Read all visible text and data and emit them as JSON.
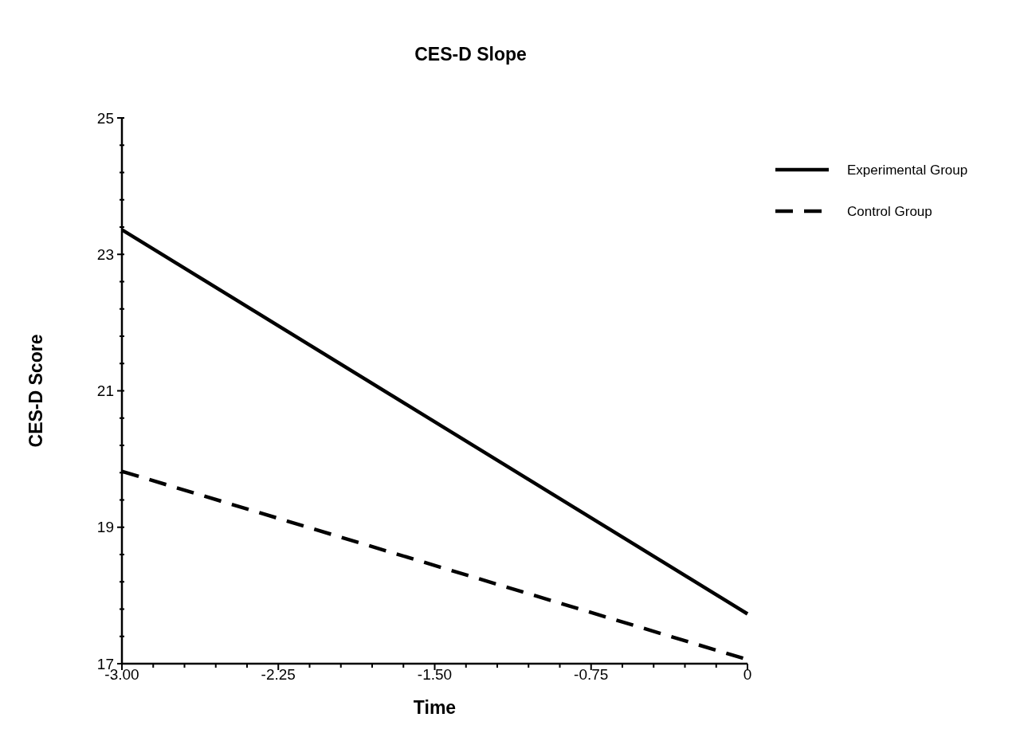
{
  "chart_data": {
    "type": "line",
    "title": "CES-D Slope",
    "xlabel": "Time",
    "ylabel": "CES-D Score",
    "x": [
      -3,
      0
    ],
    "series": [
      {
        "name": "Experimental Group",
        "color": "#000000",
        "values": [
          23.36,
          17.73
        ],
        "line_style": "solid"
      },
      {
        "name": "Control Group",
        "color": "#000000",
        "values": [
          19.82,
          17.06
        ],
        "line_style": "dashed"
      }
    ],
    "xlim": [
      -3,
      0
    ],
    "xticks": [
      {
        "value": -3,
        "label": "-3.00"
      },
      {
        "value": -2.85,
        "label": null
      },
      {
        "value": -2.7,
        "label": null
      },
      {
        "value": -2.55,
        "label": null
      },
      {
        "value": -2.4,
        "label": null
      },
      {
        "value": -2.25,
        "label": "-2.25"
      },
      {
        "value": -2.1,
        "label": null
      },
      {
        "value": -1.95,
        "label": null
      },
      {
        "value": -1.8,
        "label": null
      },
      {
        "value": -1.65,
        "label": null
      },
      {
        "value": -1.5,
        "label": "-1.50"
      },
      {
        "value": -1.35,
        "label": null
      },
      {
        "value": -1.2,
        "label": null
      },
      {
        "value": -1.05,
        "label": null
      },
      {
        "value": -0.9,
        "label": null
      },
      {
        "value": -0.75,
        "label": "-0.75"
      },
      {
        "value": -0.6,
        "label": null
      },
      {
        "value": -0.45,
        "label": null
      },
      {
        "value": -0.3,
        "label": null
      },
      {
        "value": -0.15,
        "label": null
      },
      0
    ],
    "ylim": [
      17,
      25
    ],
    "yticks": [
      17,
      {
        "value": 17.4,
        "label": null
      },
      {
        "value": 17.8,
        "label": null
      },
      {
        "value": 18.2,
        "label": null
      },
      {
        "value": 18.6,
        "label": null
      },
      19,
      {
        "value": 19.4,
        "label": null
      },
      {
        "value": 19.8,
        "label": null
      },
      {
        "value": 20.2,
        "label": null
      },
      {
        "value": 20.6,
        "label": null
      },
      21,
      {
        "value": 21.4,
        "label": null
      },
      {
        "value": 21.8,
        "label": null
      },
      {
        "value": 22.2,
        "label": null
      },
      {
        "value": 22.6,
        "label": null
      },
      23,
      {
        "value": 23.4,
        "label": null
      },
      {
        "value": 23.8,
        "label": null
      },
      {
        "value": 24.2,
        "label": null
      },
      {
        "value": 24.6,
        "label": null
      },
      25
    ],
    "grid": false,
    "legend": "top right",
    "marker": "none"
  }
}
